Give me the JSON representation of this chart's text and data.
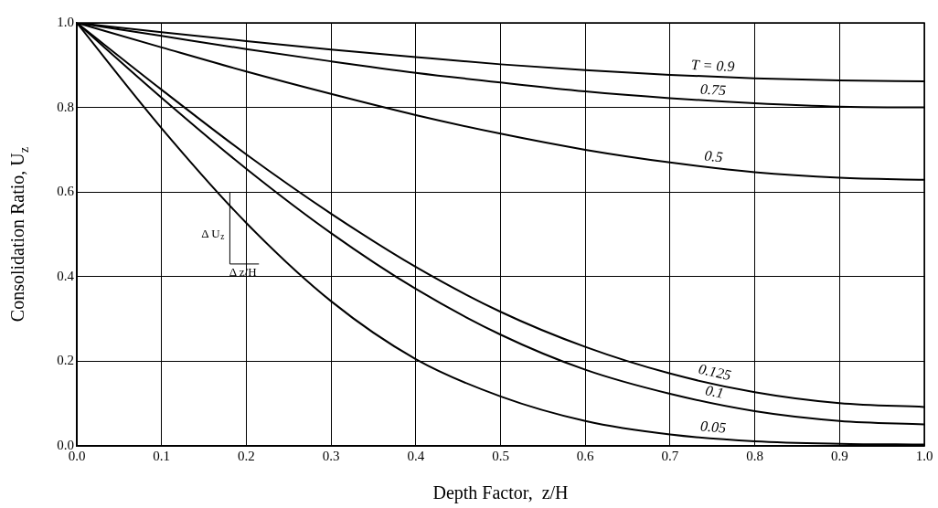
{
  "chart_data": {
    "type": "line",
    "xlabel": "Depth Factor,  z/H",
    "ylabel": "Consolidation Ratio, U$_{z}$",
    "x": [
      0,
      0.1,
      0.2,
      0.3,
      0.4,
      0.5,
      0.6,
      0.7,
      0.8,
      0.9,
      1.0
    ],
    "series": [
      {
        "name": "T = 0.9",
        "color": "#000000",
        "values": [
          1,
          0.978,
          0.957,
          0.937,
          0.919,
          0.902,
          0.888,
          0.877,
          0.869,
          0.864,
          0.862
        ]
      },
      {
        "name": "0.75",
        "color": "#000000",
        "values": [
          1,
          0.969,
          0.938,
          0.909,
          0.882,
          0.859,
          0.838,
          0.822,
          0.81,
          0.802,
          0.8
        ]
      },
      {
        "name": "0.5",
        "color": "#000000",
        "values": [
          1,
          0.942,
          0.885,
          0.832,
          0.782,
          0.738,
          0.7,
          0.67,
          0.647,
          0.634,
          0.629
        ]
      },
      {
        "name": "0.125",
        "color": "#000000",
        "values": [
          1,
          0.842,
          0.689,
          0.549,
          0.423,
          0.317,
          0.234,
          0.171,
          0.127,
          0.101,
          0.092
        ]
      },
      {
        "name": "0.1",
        "color": "#000000",
        "values": [
          1,
          0.823,
          0.655,
          0.503,
          0.371,
          0.263,
          0.18,
          0.123,
          0.082,
          0.059,
          0.051
        ]
      },
      {
        "name": "0.05",
        "color": "#000000",
        "values": [
          1,
          0.751,
          0.527,
          0.342,
          0.205,
          0.117,
          0.059,
          0.027,
          0.011,
          0.005,
          0.003
        ]
      }
    ],
    "xlim": [
      0,
      1
    ],
    "ylim": [
      0,
      1
    ],
    "xticks": [
      {
        "value": 0,
        "label": "0.0"
      },
      0.1,
      0.2,
      0.3,
      0.4,
      0.5,
      0.6,
      0.7,
      0.8,
      0.9,
      {
        "value": 1,
        "label": "1.0"
      }
    ],
    "yticks": [
      {
        "value": 0,
        "label": "0.0"
      },
      0.2,
      0.4,
      0.6,
      0.8,
      {
        "value": 1,
        "label": "1.0"
      }
    ],
    "annotations": [
      "Δ U$_{z}$",
      "Δ z/H"
    ],
    "grid": true,
    "legend": false,
    "marker": "none",
    "line_style": "solid"
  }
}
